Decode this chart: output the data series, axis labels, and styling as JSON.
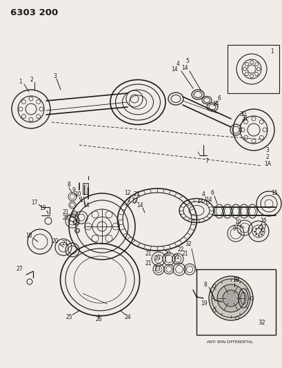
{
  "title": "6303 200",
  "bg_color": "#f0ede8",
  "line_color": "#1a1a1a",
  "label_fontsize": 5.5,
  "anti_spin_label": "ANTI SPIN DIFFERENTIAL",
  "anti_spin_label_fontsize": 4.0,
  "fig_w": 4.1,
  "fig_h": 5.33,
  "dpi": 100
}
